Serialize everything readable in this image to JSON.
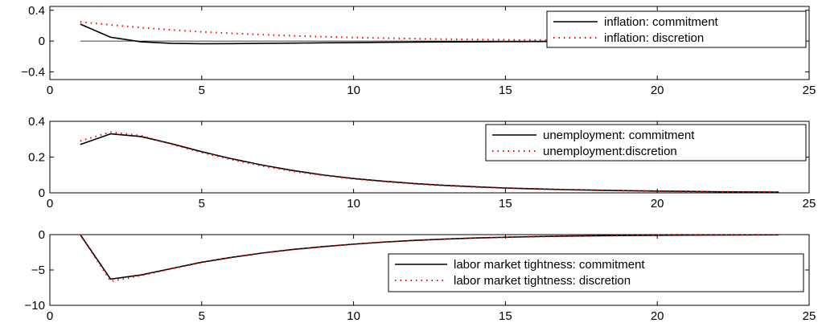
{
  "chart_data": [
    {
      "type": "line",
      "xlim": [
        0,
        25
      ],
      "ylim": [
        -0.5,
        0.45
      ],
      "xticks": [
        "0",
        "5",
        "10",
        "15",
        "20",
        "25"
      ],
      "yticks": [
        {
          "value": 0.4,
          "label": "0.4"
        },
        {
          "value": 0,
          "label": "0"
        },
        {
          "value": -0.4,
          "label": "−0.4"
        }
      ],
      "legend_position": "top-right",
      "x": [
        1,
        2,
        3,
        4,
        5,
        6,
        7,
        8,
        9,
        10,
        11,
        12,
        13,
        14,
        15,
        16,
        17,
        18,
        19,
        20,
        21,
        22,
        23,
        24
      ],
      "series": [
        {
          "name": "inflation: commitment",
          "style": "solid",
          "color": "#000000",
          "values": [
            0.22,
            0.05,
            -0.01,
            -0.03,
            -0.035,
            -0.033,
            -0.03,
            -0.027,
            -0.023,
            -0.02,
            -0.017,
            -0.014,
            -0.012,
            -0.01,
            -0.008,
            -0.006,
            -0.005,
            -0.004,
            -0.003,
            -0.002,
            -0.002,
            -0.001,
            -0.001,
            -0.001
          ]
        },
        {
          "name": "inflation: discretion",
          "style": "dotted",
          "color": "#ff0000",
          "values": [
            0.25,
            0.21,
            0.175,
            0.145,
            0.12,
            0.1,
            0.083,
            0.068,
            0.056,
            0.046,
            0.038,
            0.031,
            0.025,
            0.02,
            0.016,
            0.013,
            0.011,
            0.009,
            0.007,
            0.006,
            0.005,
            0.004,
            0.003,
            0.002
          ]
        }
      ],
      "zero_line": true
    },
    {
      "type": "line",
      "xlim": [
        0,
        25
      ],
      "ylim": [
        0,
        0.4
      ],
      "xticks": [
        "0",
        "5",
        "10",
        "15",
        "20",
        "25"
      ],
      "yticks": [
        {
          "value": 0.4,
          "label": "0.4"
        },
        {
          "value": 0.2,
          "label": "0.2"
        },
        {
          "value": 0,
          "label": "0"
        }
      ],
      "legend_position": "top-right",
      "x": [
        1,
        2,
        3,
        4,
        5,
        6,
        7,
        8,
        9,
        10,
        11,
        12,
        13,
        14,
        15,
        16,
        17,
        18,
        19,
        20,
        21,
        22,
        23,
        24
      ],
      "series": [
        {
          "name": "unemployment: commitment",
          "style": "solid",
          "color": "#000000",
          "values": [
            0.27,
            0.33,
            0.315,
            0.275,
            0.23,
            0.19,
            0.155,
            0.125,
            0.1,
            0.08,
            0.065,
            0.052,
            0.042,
            0.034,
            0.027,
            0.022,
            0.018,
            0.015,
            0.012,
            0.01,
            0.008,
            0.006,
            0.005,
            0.004
          ]
        },
        {
          "name": "unemployment:discretion",
          "style": "dotted",
          "color": "#ff0000",
          "values": [
            0.29,
            0.34,
            0.32,
            0.272,
            0.225,
            0.185,
            0.15,
            0.12,
            0.097,
            0.078,
            0.063,
            0.05,
            0.04,
            0.032,
            0.026,
            0.021,
            0.017,
            0.014,
            0.011,
            0.009,
            0.007,
            0.006,
            0.005,
            0.004
          ]
        }
      ],
      "zero_line": false
    },
    {
      "type": "line",
      "xlim": [
        0,
        25
      ],
      "ylim": [
        -10,
        0
      ],
      "xticks": [
        "0",
        "5",
        "10",
        "15",
        "20",
        "25"
      ],
      "yticks": [
        {
          "value": 0,
          "label": "0"
        },
        {
          "value": -5,
          "label": "−5"
        },
        {
          "value": -10,
          "label": "−10"
        }
      ],
      "legend_position": "bottom-right",
      "x": [
        1,
        2,
        3,
        4,
        5,
        6,
        7,
        8,
        9,
        10,
        11,
        12,
        13,
        14,
        15,
        16,
        17,
        18,
        19,
        20,
        21,
        22,
        23,
        24
      ],
      "series": [
        {
          "name": "labor market tightness: commitment",
          "style": "solid",
          "color": "#000000",
          "values": [
            0,
            -6.3,
            -5.7,
            -4.8,
            -3.9,
            -3.2,
            -2.6,
            -2.1,
            -1.7,
            -1.35,
            -1.05,
            -0.82,
            -0.63,
            -0.48,
            -0.37,
            -0.28,
            -0.21,
            -0.16,
            -0.12,
            -0.09,
            -0.07,
            -0.05,
            -0.04,
            -0.03
          ]
        },
        {
          "name": "labor market tightness: discretion",
          "style": "dotted",
          "color": "#ff0000",
          "values": [
            0,
            -6.6,
            -5.8,
            -4.85,
            -3.95,
            -3.22,
            -2.62,
            -2.12,
            -1.71,
            -1.36,
            -1.06,
            -0.83,
            -0.64,
            -0.49,
            -0.38,
            -0.29,
            -0.22,
            -0.17,
            -0.13,
            -0.1,
            -0.08,
            -0.06,
            -0.05,
            -0.04
          ]
        }
      ],
      "zero_line": false
    }
  ]
}
